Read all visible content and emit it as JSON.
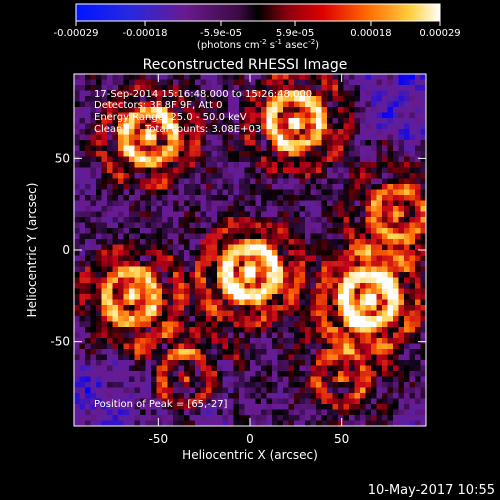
{
  "colorbar": {
    "tick_labels": [
      "-0.00029",
      "-0.00018",
      "-5.9e-05",
      "5.9e-05",
      "0.00018",
      "0.00029"
    ],
    "unit_label": "(photons cm",
    "unit_exp1": "-2",
    "unit_mid": " s",
    "unit_exp2": "-1",
    "unit_mid2": " asec",
    "unit_exp3": "-2",
    "unit_close": ")",
    "range": [
      -0.00029,
      0.00029
    ]
  },
  "annotations": {
    "time_range": "17-Sep-2014 15:16:48.000 to 15:26:48.000",
    "detectors": "Detectors: 3F 8F 9F, Att 0",
    "energy_range": "Energy Range: 25.0 - 50.0 keV",
    "clean_label": "Clean",
    "total_counts": "Total counts: 3.08E+03",
    "peak_position": "Position of Peak = [65,-27]"
  },
  "footer": {
    "date_stamp": "10-May-2017 10:55"
  },
  "chart_data": {
    "type": "heatmap",
    "title": "Reconstructed RHESSI Image",
    "xlabel": "Heliocentric X (arcsec)",
    "ylabel": "Heliocentric Y (arcsec)",
    "xlim": [
      -96,
      96
    ],
    "ylim": [
      -96,
      96
    ],
    "x_ticks": [
      -50,
      0,
      50
    ],
    "y_ticks": [
      50,
      0,
      -50
    ],
    "colormap": [
      "#0000ff",
      "#5a1fa0",
      "#6a1a8f",
      "#000000",
      "#c0001a",
      "#ff6400",
      "#ffd24a",
      "#ffffff"
    ],
    "peak_position": [
      65,
      -27
    ],
    "hotspots": [
      {
        "x": -65,
        "y": -25,
        "strength": 0.75
      },
      {
        "x": -55,
        "y": 62,
        "strength": 0.85
      },
      {
        "x": 25,
        "y": 70,
        "strength": 0.85
      },
      {
        "x": 0,
        "y": -12,
        "strength": 1.0
      },
      {
        "x": 65,
        "y": -27,
        "strength": 1.0
      },
      {
        "x": 80,
        "y": 20,
        "strength": 0.6
      },
      {
        "x": -35,
        "y": -70,
        "strength": 0.55
      },
      {
        "x": 50,
        "y": -70,
        "strength": 0.45
      }
    ]
  }
}
